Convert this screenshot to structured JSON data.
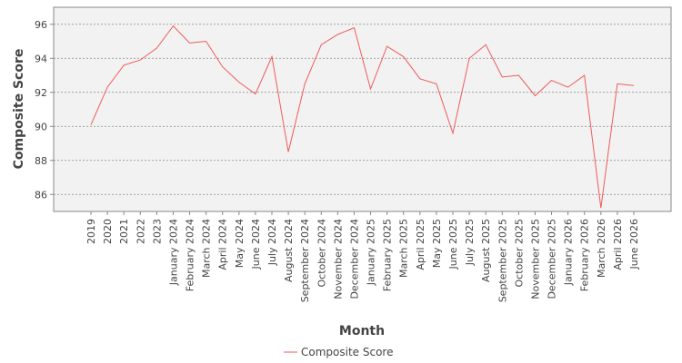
{
  "chart_data": {
    "type": "line",
    "title": "",
    "xlabel": "Month",
    "ylabel": "Composite Score",
    "ylim": [
      85,
      97
    ],
    "yticks": [
      86,
      88,
      90,
      92,
      94,
      96
    ],
    "grid": true,
    "legend_position": "bottom-center",
    "colors": {
      "line": "#f05a5a",
      "plot_background": "#f2f2f2",
      "grid": "#888888",
      "frame": "#888888"
    },
    "categories": [
      "2019",
      "2020",
      "2021",
      "2022",
      "2023",
      "January 2024",
      "February 2024",
      "March 2024",
      "April 2024",
      "May 2024",
      "June 2024",
      "July 2024",
      "August 2024",
      "September 2024",
      "October 2024",
      "November 2024",
      "December 2024",
      "January 2025",
      "February 2025",
      "March 2025",
      "April 2025",
      "May 2025",
      "June 2025",
      "July 2025",
      "August 2025",
      "September 2025",
      "October 2025",
      "November 2025",
      "December 2025",
      "January 2026",
      "February 2026",
      "March 2026",
      "April 2026",
      "June 2026"
    ],
    "series": [
      {
        "name": "Composite Score",
        "values": [
          90.1,
          92.3,
          93.6,
          93.9,
          94.6,
          95.9,
          94.9,
          95.0,
          93.5,
          92.6,
          91.9,
          94.1,
          88.5,
          92.5,
          94.8,
          95.4,
          95.8,
          92.2,
          94.7,
          94.1,
          92.8,
          92.5,
          89.6,
          94.0,
          94.8,
          92.9,
          93.0,
          91.8,
          92.7,
          92.3,
          93.0,
          85.2,
          92.5,
          92.4
        ]
      }
    ]
  }
}
